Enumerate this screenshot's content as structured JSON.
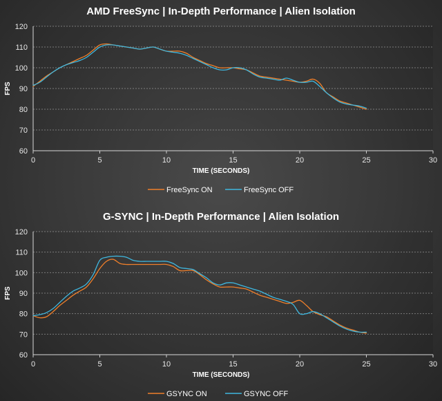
{
  "chart_data": [
    {
      "type": "line",
      "title": "AMD FreeSync | In-Depth Performance | Alien Isolation",
      "xlabel": "TIME (SECONDS)",
      "ylabel": "FPS",
      "xlim": [
        0,
        30
      ],
      "ylim": [
        60,
        120
      ],
      "xticks": [
        0,
        5,
        10,
        15,
        20,
        25,
        30
      ],
      "yticks": [
        60,
        70,
        80,
        90,
        100,
        110,
        120
      ],
      "grid": "horizontal-dashed",
      "legend_position": "bottom-center",
      "series": [
        {
          "name": "FreeSync ON",
          "color": "#f07f2a",
          "x": [
            0,
            0.5,
            1,
            1.5,
            2,
            2.5,
            3,
            3.5,
            4,
            4.5,
            5,
            5.5,
            6,
            6.5,
            7,
            7.5,
            8,
            8.5,
            9,
            9.5,
            10,
            10.5,
            11,
            11.5,
            12,
            12.5,
            13,
            13.5,
            14,
            14.5,
            15,
            15.5,
            16,
            16.5,
            17,
            17.5,
            18,
            18.5,
            19,
            19.5,
            20,
            20.5,
            21,
            21.5,
            22,
            22.5,
            23,
            23.5,
            24,
            24.5,
            25
          ],
          "values": [
            91,
            93.5,
            96,
            98,
            100,
            101.5,
            103,
            104.5,
            106,
            108.5,
            111,
            111.5,
            111,
            110.5,
            110,
            109.5,
            109,
            109.5,
            110,
            109,
            108,
            108,
            108,
            107,
            105,
            103.5,
            102,
            101,
            100,
            100,
            100,
            99.5,
            99,
            97.5,
            96,
            95.5,
            95,
            94.5,
            94,
            93.5,
            93,
            93.5,
            94.5,
            92.5,
            88,
            86,
            84,
            83,
            82,
            81,
            80
          ]
        },
        {
          "name": "FreeSync OFF",
          "color": "#3fb8e0",
          "x": [
            0,
            0.5,
            1,
            1.5,
            2,
            2.5,
            3,
            3.5,
            4,
            4.5,
            5,
            5.5,
            6,
            6.5,
            7,
            7.5,
            8,
            8.5,
            9,
            9.5,
            10,
            10.5,
            11,
            11.5,
            12,
            12.5,
            13,
            13.5,
            14,
            14.5,
            15,
            15.5,
            16,
            16.5,
            17,
            17.5,
            18,
            18.5,
            19,
            19.5,
            20,
            20.5,
            21,
            21.5,
            22,
            22.5,
            23,
            23.5,
            24,
            24.5,
            25
          ],
          "values": [
            91.5,
            93,
            95.5,
            98,
            100,
            101.5,
            102.5,
            103.5,
            105,
            107.5,
            110,
            111,
            111,
            110.5,
            110,
            109.5,
            109,
            109.5,
            110,
            109,
            108,
            107.5,
            107,
            106,
            104.5,
            103,
            101.5,
            100,
            99,
            99,
            100,
            100,
            99,
            97,
            95.5,
            95,
            94.5,
            94,
            95,
            94,
            93,
            93,
            93.5,
            91,
            88,
            85.5,
            83.5,
            82.5,
            82,
            81.5,
            80.5
          ]
        }
      ]
    },
    {
      "type": "line",
      "title": "G-SYNC | In-Depth Performance | Alien Isolation",
      "xlabel": "TIME (SECONDS)",
      "ylabel": "FPS",
      "xlim": [
        0,
        30
      ],
      "ylim": [
        60,
        120
      ],
      "xticks": [
        0,
        5,
        10,
        15,
        20,
        25,
        30
      ],
      "yticks": [
        60,
        70,
        80,
        90,
        100,
        110,
        120
      ],
      "grid": "horizontal-dashed",
      "legend_position": "bottom-center",
      "series": [
        {
          "name": "GSYNC ON",
          "color": "#f07f2a",
          "x": [
            0,
            0.5,
            1,
            1.5,
            2,
            2.5,
            3,
            3.5,
            4,
            4.5,
            5,
            5.5,
            6,
            6.5,
            7,
            7.5,
            8,
            8.5,
            9,
            9.5,
            10,
            10.5,
            11,
            11.5,
            12,
            12.5,
            13,
            13.5,
            14,
            14.5,
            15,
            15.5,
            16,
            16.5,
            17,
            17.5,
            18,
            18.5,
            19,
            19.5,
            20,
            20.5,
            21,
            21.5,
            22,
            22.5,
            23,
            23.5,
            24,
            24.5,
            25
          ],
          "values": [
            79,
            78,
            78.5,
            81,
            84,
            86.5,
            89,
            91,
            93,
            97,
            102,
            105.5,
            106.5,
            104.5,
            104,
            104,
            104,
            104,
            104,
            104,
            104,
            103,
            101,
            101,
            101,
            99,
            96.5,
            94.5,
            93,
            93,
            93,
            92.5,
            92,
            90.5,
            89,
            88,
            87,
            86,
            85,
            85.5,
            86.5,
            84,
            81,
            79.5,
            78.5,
            76.5,
            74.5,
            73,
            72,
            71,
            70.5
          ]
        },
        {
          "name": "GSYNC OFF",
          "color": "#3fb8e0",
          "x": [
            0,
            0.5,
            1,
            1.5,
            2,
            2.5,
            3,
            3.5,
            4,
            4.5,
            5,
            5.5,
            6,
            6.5,
            7,
            7.5,
            8,
            8.5,
            9,
            9.5,
            10,
            10.5,
            11,
            11.5,
            12,
            12.5,
            13,
            13.5,
            14,
            14.5,
            15,
            15.5,
            16,
            16.5,
            17,
            17.5,
            18,
            18.5,
            19,
            19.5,
            20,
            20.5,
            21,
            21.5,
            22,
            22.5,
            23,
            23.5,
            24,
            24.5,
            25
          ],
          "values": [
            79,
            79.5,
            80.5,
            82.5,
            85.5,
            88.5,
            91,
            92.5,
            94.5,
            99,
            106,
            107.5,
            108,
            108,
            107.5,
            106,
            105.5,
            105.5,
            105.5,
            105.5,
            105.5,
            104.5,
            102.5,
            102,
            101.5,
            99.5,
            97.5,
            95,
            94,
            95,
            95,
            94,
            93,
            92,
            91,
            89.5,
            88,
            87,
            86,
            84.5,
            80,
            80,
            81,
            80,
            78,
            76,
            74,
            72.5,
            71.5,
            71,
            71
          ]
        }
      ]
    }
  ]
}
